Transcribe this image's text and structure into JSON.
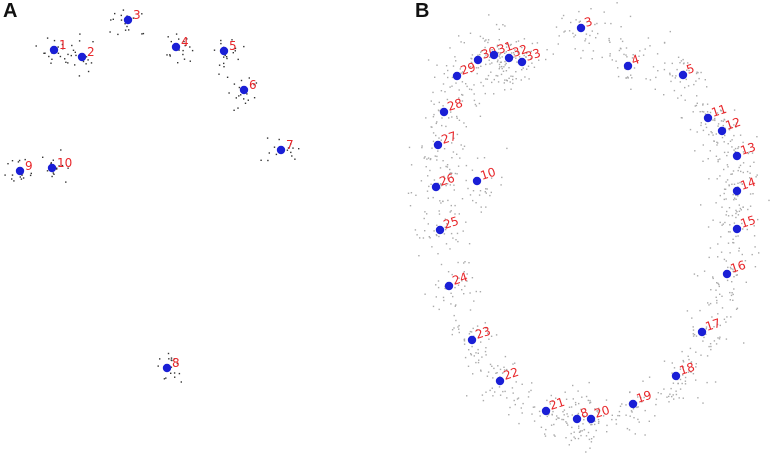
{
  "panels": {
    "a": {
      "label": "A",
      "nodes": [
        {
          "id": "1"
        },
        {
          "id": "2"
        },
        {
          "id": "3"
        },
        {
          "id": "4"
        },
        {
          "id": "5"
        },
        {
          "id": "6"
        },
        {
          "id": "7"
        },
        {
          "id": "8"
        },
        {
          "id": "9"
        },
        {
          "id": "10"
        }
      ]
    },
    "b": {
      "label": "B",
      "nodes": [
        {
          "id": "3"
        },
        {
          "id": "4"
        },
        {
          "id": "5"
        },
        {
          "id": "8"
        },
        {
          "id": "10"
        },
        {
          "id": "11"
        },
        {
          "id": "12"
        },
        {
          "id": "13"
        },
        {
          "id": "14"
        },
        {
          "id": "15"
        },
        {
          "id": "16"
        },
        {
          "id": "17"
        },
        {
          "id": "18"
        },
        {
          "id": "19"
        },
        {
          "id": "20"
        },
        {
          "id": "21"
        },
        {
          "id": "22"
        },
        {
          "id": "23"
        },
        {
          "id": "24"
        },
        {
          "id": "25"
        },
        {
          "id": "26"
        },
        {
          "id": "27"
        },
        {
          "id": "28"
        },
        {
          "id": "29"
        },
        {
          "id": "30"
        },
        {
          "id": "31"
        },
        {
          "id": "32"
        },
        {
          "id": "33"
        }
      ]
    }
  },
  "colors": {
    "node": "#1a1fd6",
    "label": "#e8262a",
    "scatter_a": "#333333",
    "scatter_b": "#aaaaaa"
  }
}
